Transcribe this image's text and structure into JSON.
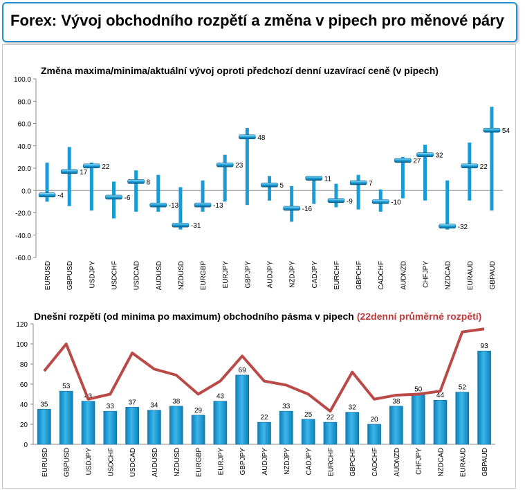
{
  "page": {
    "title": "Forex: Vývoj obchodního rozpětí a změna v pipech pro měnové páry"
  },
  "chart_data": [
    {
      "type": "range",
      "title": "Změna maxima/minima/aktuální vývoj oproti předchozí denní uzavírací ceně (v pipech)",
      "ylim": [
        -60,
        100
      ],
      "yticks": [
        "100.0",
        "80.0",
        "60.0",
        "40.0",
        "20.0",
        "0.0",
        "-20.0",
        "-40.0",
        "-60.0"
      ],
      "categories": [
        "EURUSD",
        "GBPUSD",
        "USDJPY",
        "USDCHF",
        "USDCAD",
        "AUDUSD",
        "NZDUSD",
        "EURGBP",
        "EURJPY",
        "GBPJPY",
        "AUDJPY",
        "NZDJPY",
        "CADJPY",
        "EURCHF",
        "GBPCHF",
        "CADCHF",
        "AUDNZD",
        "CHFJPY",
        "NZDCAD",
        "EURAUD",
        "GBPAUD"
      ],
      "high": [
        25,
        39,
        25,
        8,
        18,
        14,
        3,
        9,
        32,
        56,
        13,
        4,
        12,
        6,
        14,
        1,
        30,
        41,
        9,
        43,
        75
      ],
      "low": [
        -10,
        -14,
        -18,
        -25,
        -19,
        -19,
        -35,
        -19,
        -10,
        -13,
        -9,
        -28,
        -12,
        -15,
        -17,
        -19,
        -7,
        -9,
        -35,
        -9,
        -18
      ],
      "current": [
        -4,
        17,
        22,
        -6,
        8,
        -13,
        -31,
        -13,
        23,
        48,
        5,
        -16,
        11,
        -9,
        7,
        -10,
        27,
        32,
        -32,
        22,
        54
      ],
      "labels": [
        "-4",
        "17",
        "22",
        "-6",
        "8",
        "-13",
        "-31",
        "-13",
        "23",
        "48",
        "5",
        "-16",
        "11",
        "-9",
        "7",
        "-10",
        "27",
        "32",
        "-32",
        "22",
        "54"
      ],
      "color": "#1a9bd5"
    },
    {
      "type": "bar+line",
      "title": "Dnešní rozpětí (od minima po maximum) obchodního pásma v pipech",
      "title_highlight": "(22denní průměrné rozpětí)",
      "ylim": [
        0,
        120
      ],
      "yticks": [
        "120",
        "100",
        "80",
        "60",
        "40",
        "20",
        "0"
      ],
      "categories": [
        "EURUSD",
        "GBPUSD",
        "USDJPY",
        "USDCHF",
        "USDCAD",
        "AUDUSD",
        "NZDUSD",
        "EURGBP",
        "EURJPY",
        "GBPJPY",
        "AUDJPY",
        "NZDJPY",
        "CADJPY",
        "EURCHF",
        "GBPCHF",
        "CADCHF",
        "AUDNZD",
        "CHFJPY",
        "NZDCAD",
        "EURAUD",
        "GBPAUD"
      ],
      "values": [
        35,
        53,
        43,
        33,
        37,
        34,
        38,
        29,
        43,
        69,
        22,
        33,
        25,
        22,
        32,
        20,
        38,
        50,
        44,
        52,
        93
      ],
      "labels": [
        "35",
        "53",
        "43",
        "33",
        "37",
        "34",
        "38",
        "29",
        "43",
        "69",
        "22",
        "33",
        "25",
        "22",
        "32",
        "20",
        "38",
        "50",
        "44",
        "52",
        "93"
      ],
      "average": [
        73,
        100,
        45,
        50,
        91,
        75,
        69,
        50,
        63,
        88,
        63,
        59,
        50,
        33,
        72,
        45,
        49,
        50,
        53,
        112,
        115
      ],
      "bar_color": "#1a9bd5",
      "line_color": "#b94a48",
      "highlight_color": "#c0393b"
    }
  ]
}
